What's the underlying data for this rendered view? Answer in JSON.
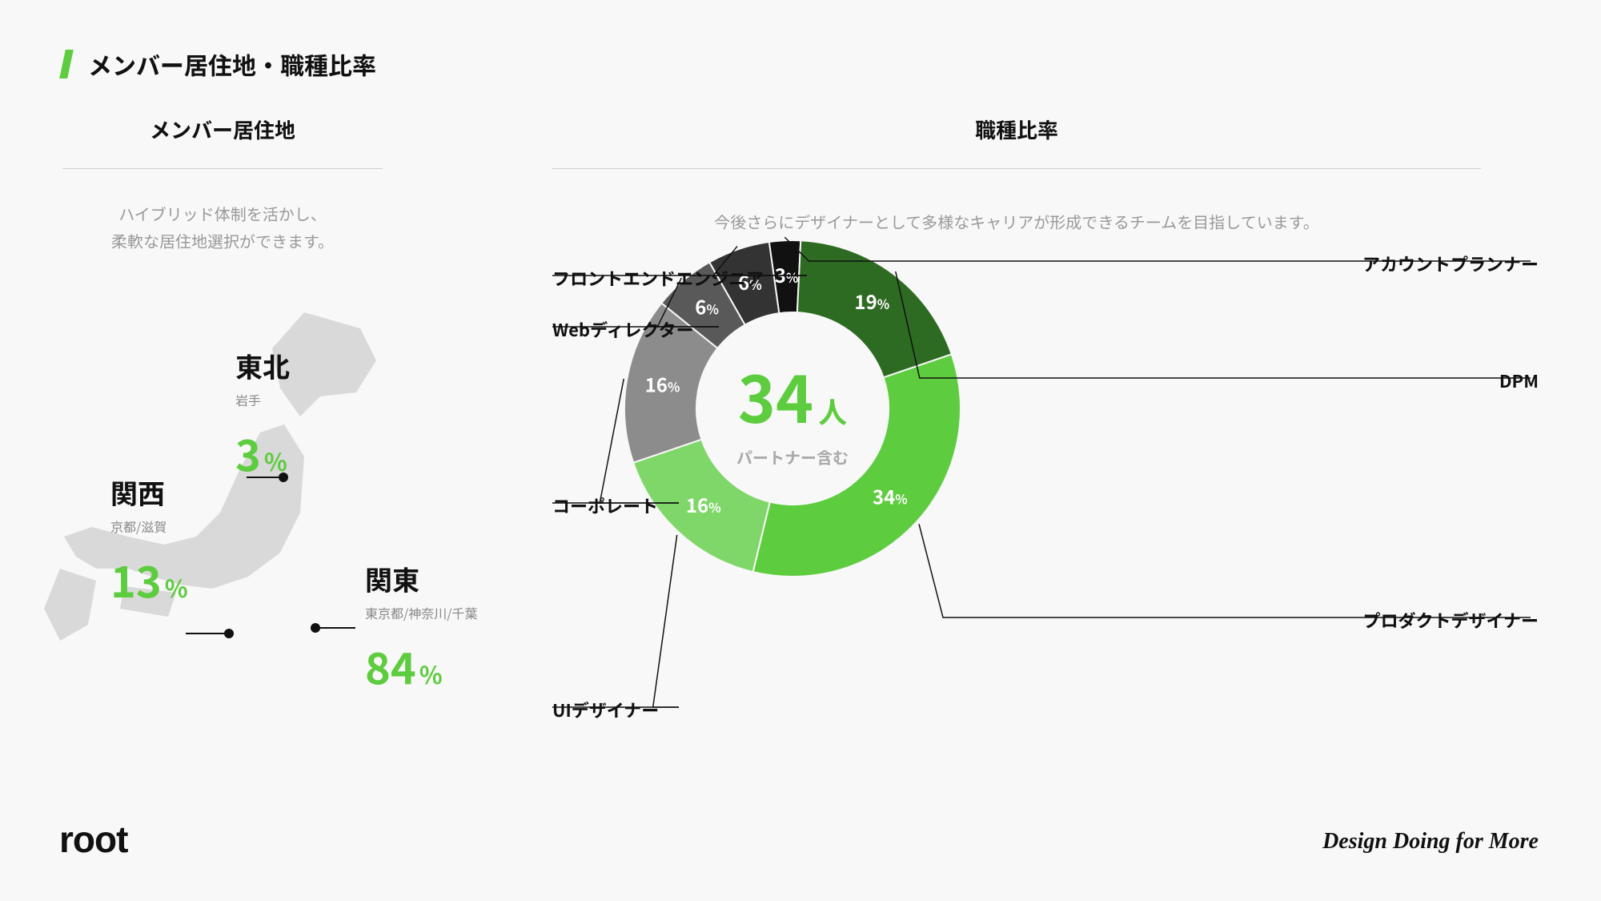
{
  "page_title": "メンバー居住地・職種比率",
  "accent_color": "#5ECC3F",
  "background_color": "#f8f8f8",
  "map_fill": "#d9d9d9",
  "left": {
    "title": "メンバー居住地",
    "subtitle_line1": "ハイブリッド体制を活かし、",
    "subtitle_line2": "柔軟な居住地選択ができます。",
    "regions": {
      "tohoku": {
        "name": "東北",
        "sub": "岩手",
        "pct": "3"
      },
      "kansai": {
        "name": "関西",
        "sub": "京都/滋賀",
        "pct": "13"
      },
      "kanto": {
        "name": "関東",
        "sub": "東京都/神奈川/千葉",
        "pct": "84"
      }
    }
  },
  "right": {
    "title": "職種比率",
    "subtitle": "今後さらにデザイナーとして多様なキャリアが形成できるチームを目指しています。",
    "center_value": "34",
    "center_unit": "人",
    "center_sub": "パートナー含む",
    "donut": {
      "type": "donut",
      "inner_radius": 120,
      "outer_radius": 210,
      "slices": [
        {
          "label": "アカウントプランナー",
          "value": 3,
          "color": "#111111"
        },
        {
          "label": "DPM",
          "value": 19,
          "color": "#2E6B22"
        },
        {
          "label": "プロダクトデザイナー",
          "value": 34,
          "color": "#5ECC3F"
        },
        {
          "label": "UIデザイナー",
          "value": 16,
          "color": "#7ED768"
        },
        {
          "label": "コーポレート",
          "value": 16,
          "color": "#8C8C8C"
        },
        {
          "label": "Webディレクター",
          "value": 6,
          "color": "#595959"
        },
        {
          "label": "フロントエンドエンジニア",
          "value": 6,
          "color": "#333333"
        }
      ]
    }
  },
  "footer": {
    "logo": "root",
    "tagline": "Design Doing for More"
  }
}
